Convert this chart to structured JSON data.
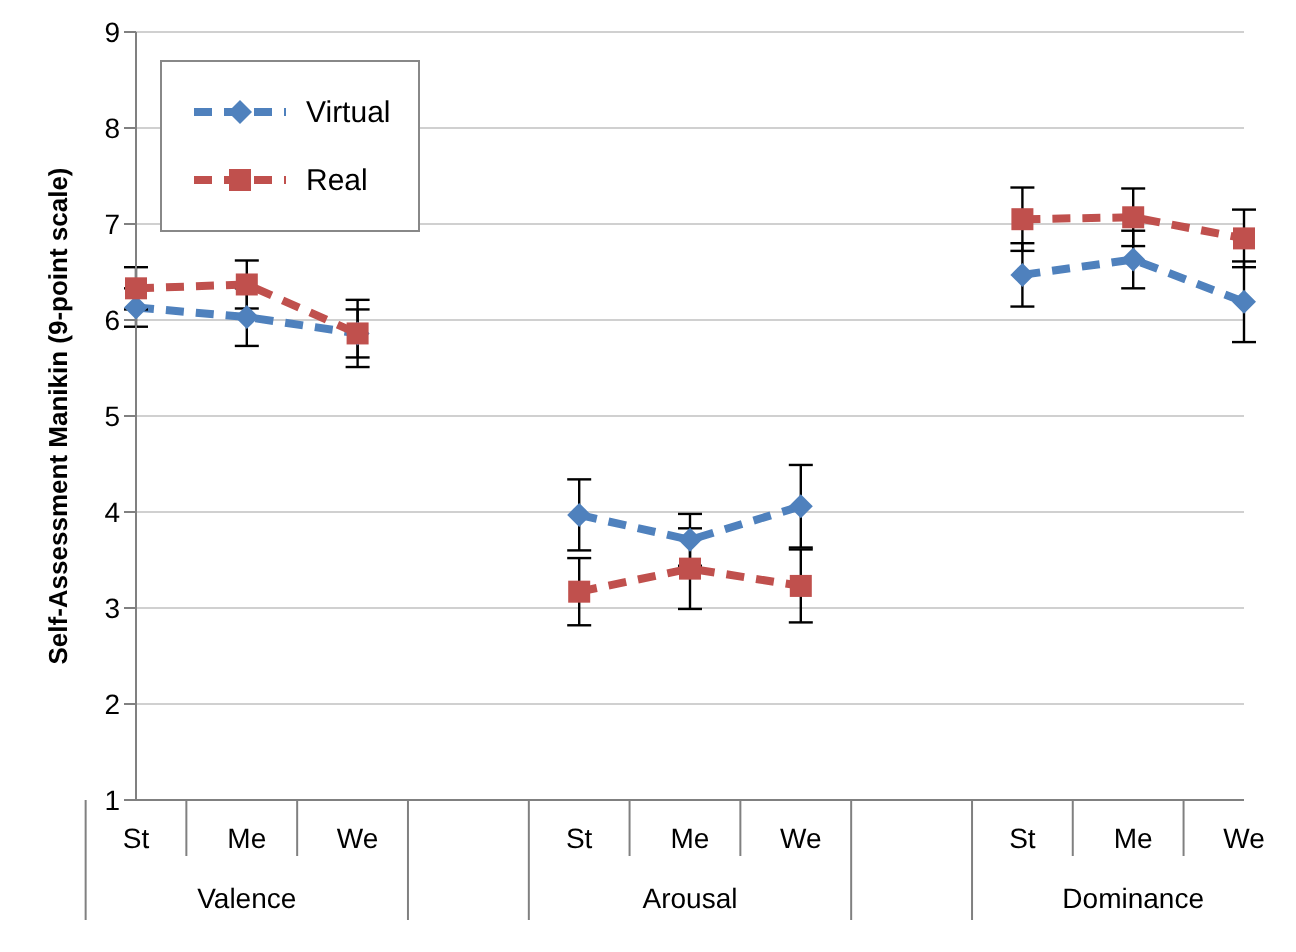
{
  "chart_data": {
    "type": "line",
    "ylabel": "Self-Assessment Manikin (9-point scale)",
    "categories": [
      "St",
      "Me",
      "We",
      null,
      "St",
      "Me",
      "We",
      null,
      "St",
      "Me",
      "We"
    ],
    "annotations": [
      "Valence",
      "Arousal",
      "Dominance"
    ],
    "series": [
      {
        "name": "Virtual",
        "color": "#4f81bd",
        "marker": "diamond",
        "values": [
          6.13,
          6.03,
          5.86,
          null,
          3.97,
          3.71,
          4.06,
          null,
          6.47,
          6.63,
          6.19
        ],
        "errors": [
          0.2,
          0.3,
          0.25,
          null,
          0.37,
          0.27,
          0.43,
          null,
          0.33,
          0.3,
          0.42
        ]
      },
      {
        "name": "Real",
        "color": "#c0504d",
        "marker": "square",
        "values": [
          6.33,
          6.37,
          5.86,
          null,
          3.17,
          3.41,
          3.23,
          null,
          7.05,
          7.07,
          6.85
        ],
        "errors": [
          0.22,
          0.25,
          0.35,
          null,
          0.35,
          0.42,
          0.38,
          null,
          0.33,
          0.3,
          0.3
        ]
      }
    ],
    "ylim": [
      1,
      9
    ],
    "yticks": [
      1,
      2,
      3,
      4,
      5,
      6,
      7,
      8,
      9
    ],
    "grid": "y",
    "legend": "top left",
    "line_style": "dashed"
  }
}
